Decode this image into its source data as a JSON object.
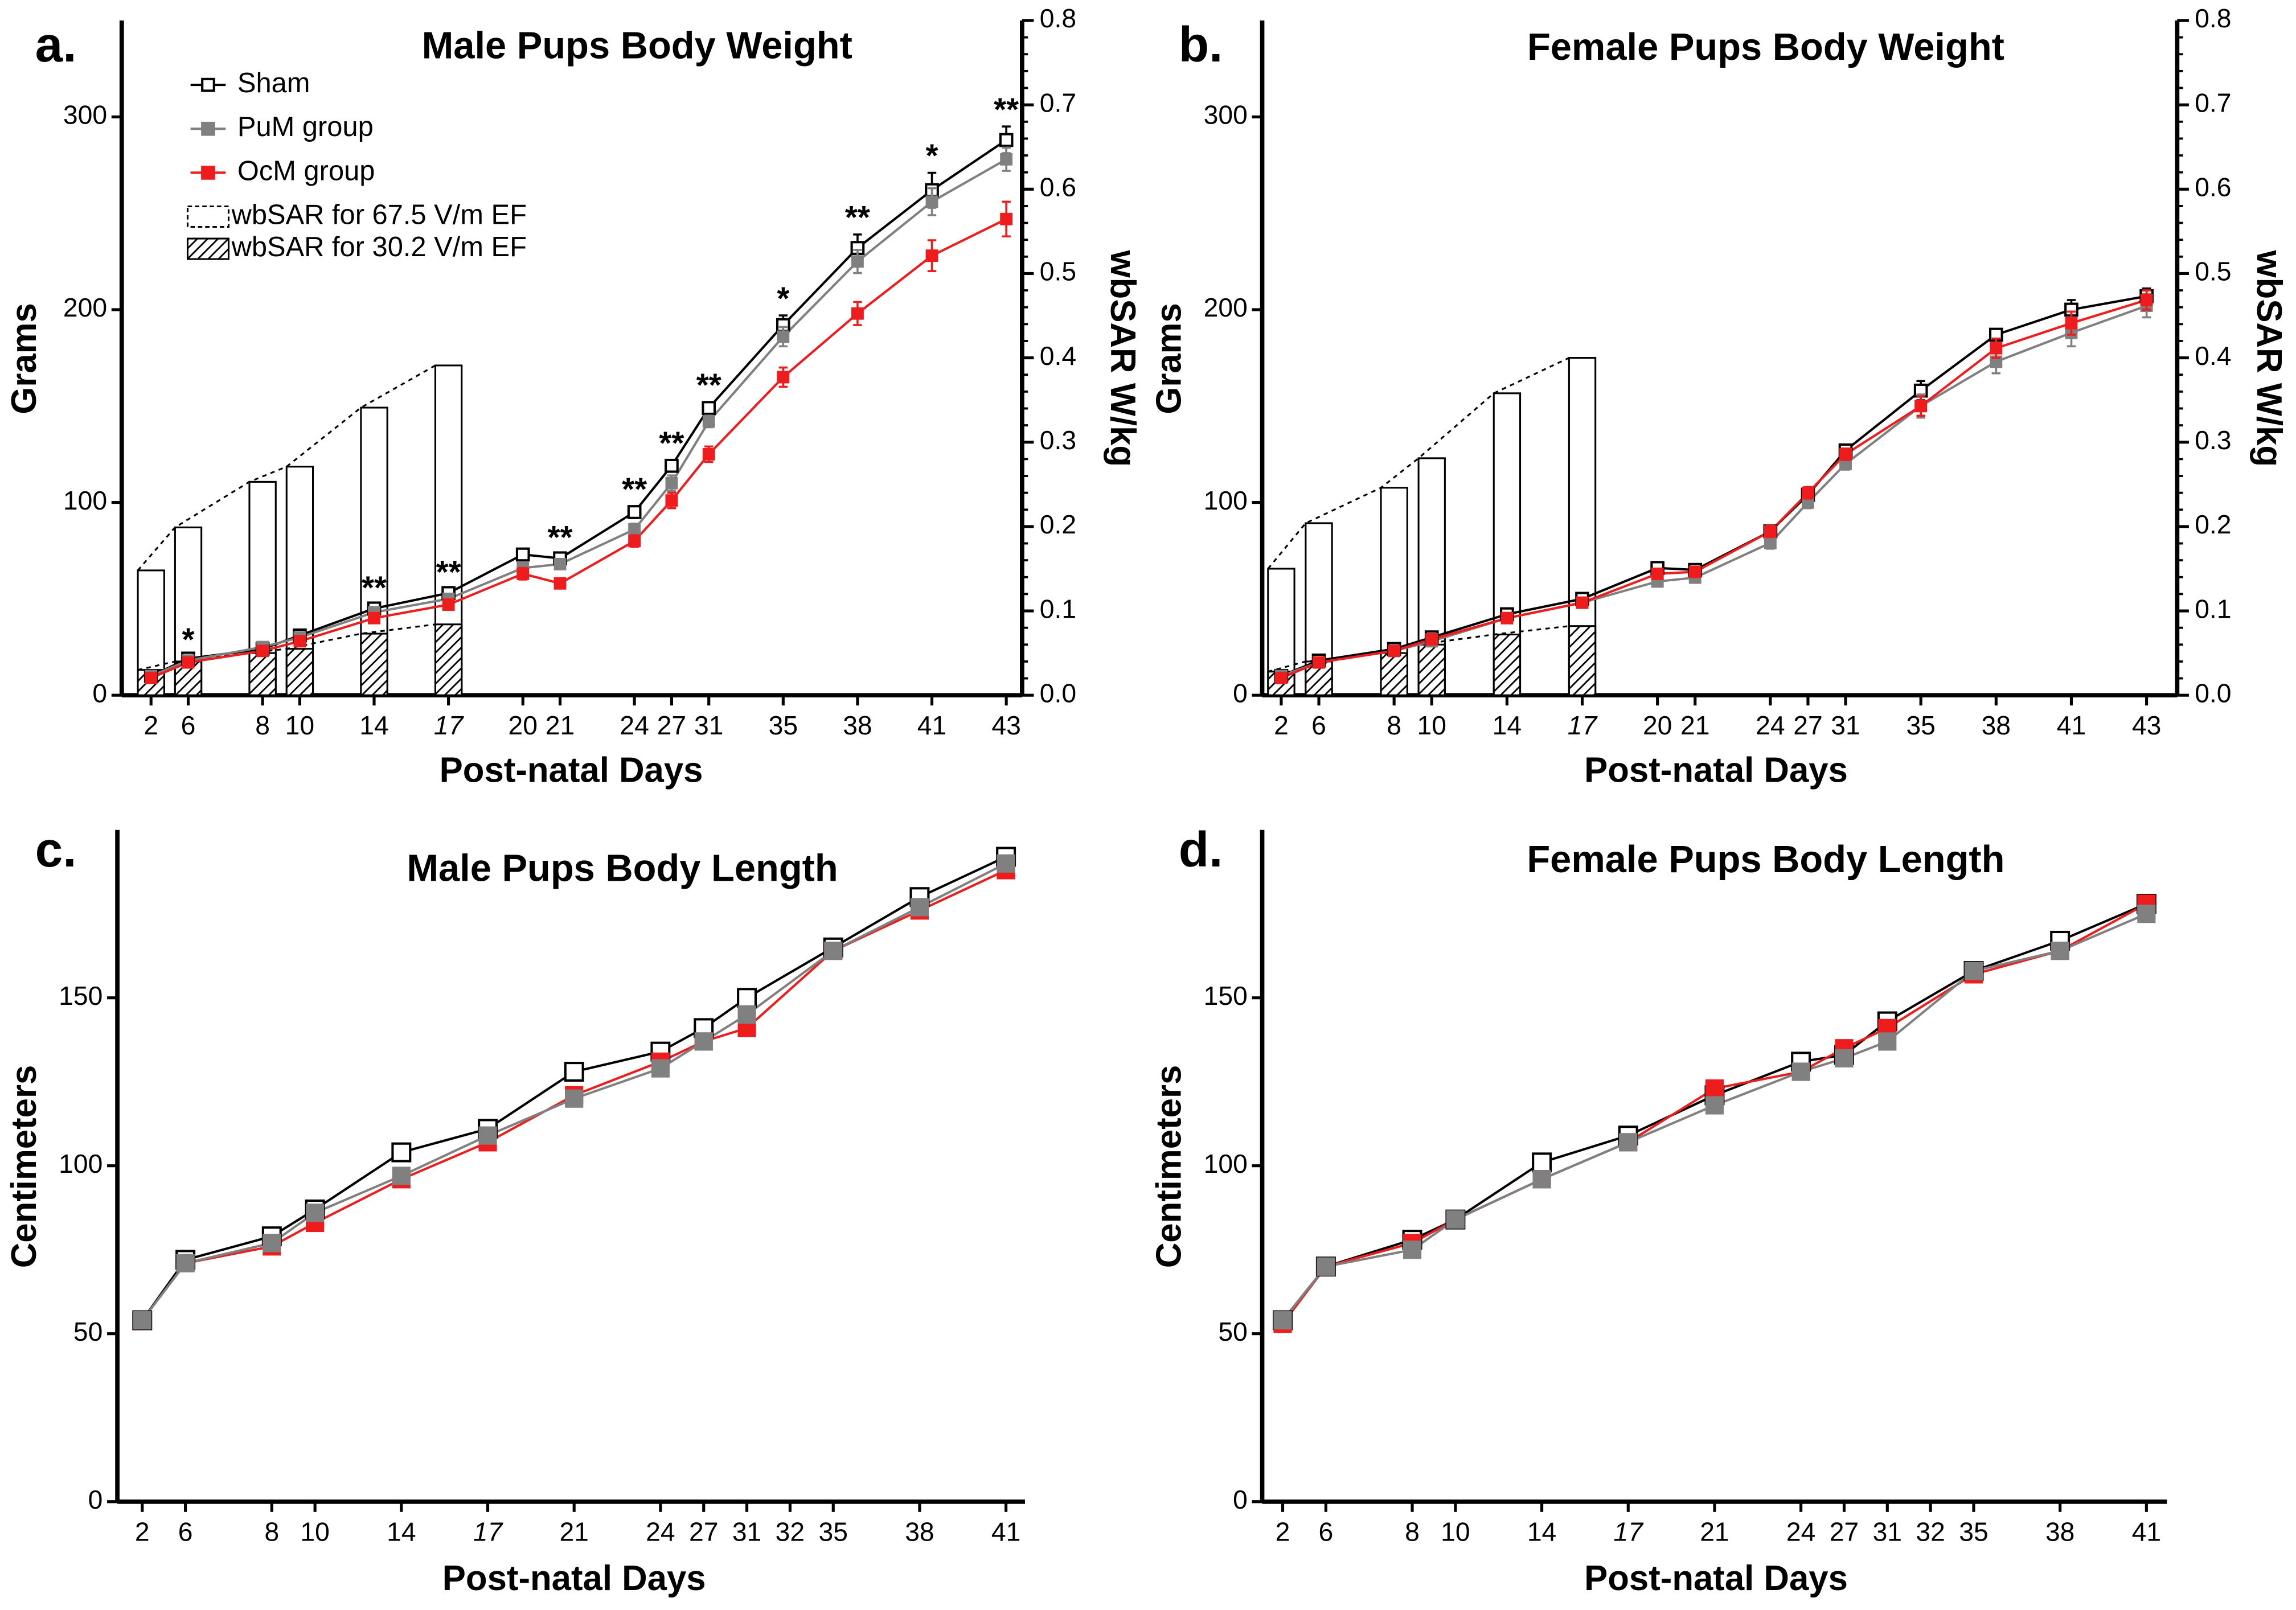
{
  "chart_data": [
    {
      "type": "line",
      "label": "a.",
      "title": "Male Pups Body Weight",
      "x_label": "Post-natal Days",
      "y_label": "Grams",
      "y2_label": "wbSAR W/kg",
      "x": [
        2,
        6,
        8,
        10,
        14,
        17,
        20,
        21,
        24,
        27,
        31,
        35,
        38,
        41,
        43
      ],
      "xticks": [
        2,
        6,
        8,
        10,
        14,
        17,
        20,
        21,
        24,
        27,
        31,
        35,
        38,
        41,
        43
      ],
      "italic_xticks": [
        17
      ],
      "ylim": [
        0,
        350
      ],
      "yticks": [
        0,
        100,
        200,
        300
      ],
      "y2lim": [
        0,
        0.8
      ],
      "y2ticks": [
        {
          "value": 0,
          "label": "0.0"
        },
        0.1,
        0.2,
        0.3,
        0.4,
        0.5,
        0.6,
        0.7,
        0.8
      ],
      "legend": true,
      "series": [
        {
          "name": "Sham",
          "type": "line",
          "marker": "open",
          "color": "#000000",
          "values": [
            10,
            19,
            24,
            31,
            45,
            53,
            73,
            71,
            95,
            119,
            149,
            192,
            232,
            262,
            288
          ],
          "errors": [
            1,
            1,
            1,
            2,
            2,
            2,
            3,
            2,
            3,
            3,
            3,
            5,
            7,
            9,
            7
          ]
        },
        {
          "name": "PuM group",
          "type": "line",
          "marker": "filled",
          "color": "#808080",
          "values": [
            10,
            18,
            25,
            30,
            43,
            50,
            66,
            68,
            86,
            110,
            142,
            186,
            225,
            256,
            278
          ],
          "errors": [
            1,
            1,
            1,
            2,
            2,
            2,
            3,
            2,
            3,
            4,
            3,
            5,
            6,
            7,
            6
          ]
        },
        {
          "name": "OcM group",
          "type": "line",
          "marker": "filled",
          "color": "#ee1c1c",
          "values": [
            9,
            17,
            23,
            28,
            40,
            47,
            63,
            58,
            80,
            101,
            125,
            165,
            198,
            228,
            247
          ],
          "errors": [
            1,
            1,
            1,
            1,
            2,
            2,
            3,
            2,
            3,
            4,
            4,
            5,
            6,
            8,
            9
          ]
        },
        {
          "name": "wbSAR for 67.5 V/m EF",
          "type": "bar",
          "pattern": "open",
          "axis": "y2",
          "color": "#000000",
          "values": [
            0.148,
            0.199,
            0.253,
            0.271,
            0.341,
            0.391,
            null,
            null,
            null,
            null,
            null,
            null,
            null,
            null,
            null
          ]
        },
        {
          "name": "wbSAR for 30.2 V/m EF",
          "type": "bar",
          "pattern": "hatch",
          "axis": "y2",
          "color": "#000000",
          "values": [
            0.03,
            0.04,
            0.05,
            0.055,
            0.073,
            0.084,
            null,
            null,
            null,
            null,
            null,
            null,
            null,
            null,
            null
          ]
        }
      ],
      "annotations": [
        {
          "x": 6,
          "text": "*"
        },
        {
          "x": 14,
          "text": "**"
        },
        {
          "x": 17,
          "text": "**"
        },
        {
          "x": 21,
          "text": "**"
        },
        {
          "x": 24,
          "text": "**"
        },
        {
          "x": 27,
          "text": "**"
        },
        {
          "x": 31,
          "text": "**"
        },
        {
          "x": 35,
          "text": "*"
        },
        {
          "x": 38,
          "text": "**"
        },
        {
          "x": 41,
          "text": "*"
        },
        {
          "x": 43,
          "text": "**"
        }
      ]
    },
    {
      "type": "line",
      "label": "b.",
      "title": "Female Pups Body Weight",
      "x_label": "Post-natal Days",
      "y_label": "Grams",
      "y2_label": "wbSAR W/kg",
      "x": [
        2,
        6,
        8,
        10,
        14,
        17,
        20,
        21,
        24,
        27,
        31,
        35,
        38,
        41,
        43
      ],
      "xticks": [
        2,
        6,
        8,
        10,
        14,
        17,
        20,
        21,
        24,
        27,
        31,
        35,
        38,
        41,
        43
      ],
      "italic_xticks": [
        17
      ],
      "ylim": [
        0,
        350
      ],
      "yticks": [
        0,
        100,
        200,
        300
      ],
      "y2lim": [
        0,
        0.8
      ],
      "y2ticks": [
        {
          "value": 0,
          "label": "0.0"
        },
        0.1,
        0.2,
        0.3,
        0.4,
        0.5,
        0.6,
        0.7,
        0.8
      ],
      "legend": false,
      "series": [
        {
          "type": "line",
          "marker": "open",
          "color": "#000000",
          "values": [
            10,
            18,
            24,
            30,
            42,
            50,
            66,
            65,
            85,
            104,
            127,
            158,
            187,
            200,
            207
          ],
          "errors": [
            1,
            1,
            1,
            1,
            2,
            2,
            2,
            2,
            3,
            3,
            3,
            5,
            3,
            5,
            4
          ]
        },
        {
          "type": "line",
          "marker": "filled",
          "color": "#808080",
          "values": [
            10,
            17,
            23,
            28,
            40,
            48,
            59,
            61,
            79,
            100,
            120,
            150,
            173,
            188,
            202
          ],
          "errors": [
            1,
            1,
            1,
            1,
            2,
            2,
            2,
            2,
            3,
            3,
            3,
            6,
            6,
            7,
            6
          ]
        },
        {
          "type": "line",
          "marker": "filled",
          "color": "#ee1c1c",
          "values": [
            9,
            17,
            23,
            29,
            40,
            48,
            63,
            64,
            85,
            105,
            125,
            150,
            180,
            193,
            205
          ],
          "errors": [
            1,
            1,
            1,
            1,
            2,
            2,
            2,
            2,
            3,
            3,
            3,
            5,
            5,
            6,
            5
          ]
        },
        {
          "type": "bar",
          "pattern": "open",
          "axis": "y2",
          "color": "#000000",
          "values": [
            0.15,
            0.204,
            0.246,
            0.281,
            0.358,
            0.4,
            null,
            null,
            null,
            null,
            null,
            null,
            null,
            null,
            null
          ]
        },
        {
          "type": "bar",
          "pattern": "hatch",
          "axis": "y2",
          "color": "#000000",
          "values": [
            0.028,
            0.04,
            0.05,
            0.06,
            0.072,
            0.082,
            null,
            null,
            null,
            null,
            null,
            null,
            null,
            null,
            null
          ]
        }
      ]
    },
    {
      "type": "line",
      "label": "c.",
      "title": "Male Pups Body Length",
      "x_label": "Post-natal Days",
      "y_label": "Centimeters",
      "x": [
        2,
        6,
        8,
        10,
        14,
        17,
        21,
        24,
        27,
        31,
        35,
        38,
        41
      ],
      "xticks": [
        2,
        6,
        8,
        10,
        14,
        17,
        21,
        24,
        27,
        31,
        32,
        35,
        38,
        41
      ],
      "italic_xticks": [
        17
      ],
      "ylim": [
        0,
        200
      ],
      "yticks": [
        0,
        50,
        100,
        150
      ],
      "legend": false,
      "series": [
        {
          "type": "line",
          "marker": "open",
          "color": "#000000",
          "values": [
            54,
            72,
            79,
            87,
            104,
            111,
            128,
            134,
            141,
            150,
            165,
            180,
            192
          ]
        },
        {
          "type": "line",
          "marker": "filled",
          "color": "#ee1c1c",
          "values": [
            54,
            71,
            76,
            83,
            96,
            107,
            121,
            131,
            137,
            141,
            164,
            176,
            188
          ]
        },
        {
          "type": "line",
          "marker": "filled",
          "color": "#808080",
          "values": [
            54,
            71,
            77,
            86,
            97,
            109,
            120,
            129,
            137,
            145,
            164,
            177,
            190
          ]
        }
      ]
    },
    {
      "type": "line",
      "label": "d.",
      "title": "Female Pups Body Length",
      "x_label": "Post-natal Days",
      "y_label": "Centimeters",
      "x": [
        2,
        6,
        8,
        10,
        14,
        17,
        21,
        24,
        27,
        31,
        35,
        38,
        41
      ],
      "xticks": [
        2,
        6,
        8,
        10,
        14,
        17,
        21,
        24,
        27,
        31,
        32,
        35,
        38,
        41
      ],
      "italic_xticks": [
        17
      ],
      "ylim": [
        0,
        200
      ],
      "yticks": [
        0,
        50,
        100,
        150
      ],
      "legend": false,
      "series": [
        {
          "type": "line",
          "marker": "open",
          "color": "#000000",
          "values": [
            54,
            70,
            78,
            84,
            101,
            109,
            121,
            131,
            133,
            143,
            158,
            167,
            178
          ]
        },
        {
          "type": "line",
          "marker": "filled",
          "color": "#ee1c1c",
          "values": [
            53,
            70,
            77,
            84,
            96,
            107,
            123,
            128,
            135,
            141,
            157,
            164,
            178
          ]
        },
        {
          "type": "line",
          "marker": "filled",
          "color": "#808080",
          "values": [
            54,
            70,
            75,
            84,
            96,
            107,
            118,
            128,
            132,
            137,
            158,
            164,
            175
          ]
        }
      ]
    }
  ]
}
